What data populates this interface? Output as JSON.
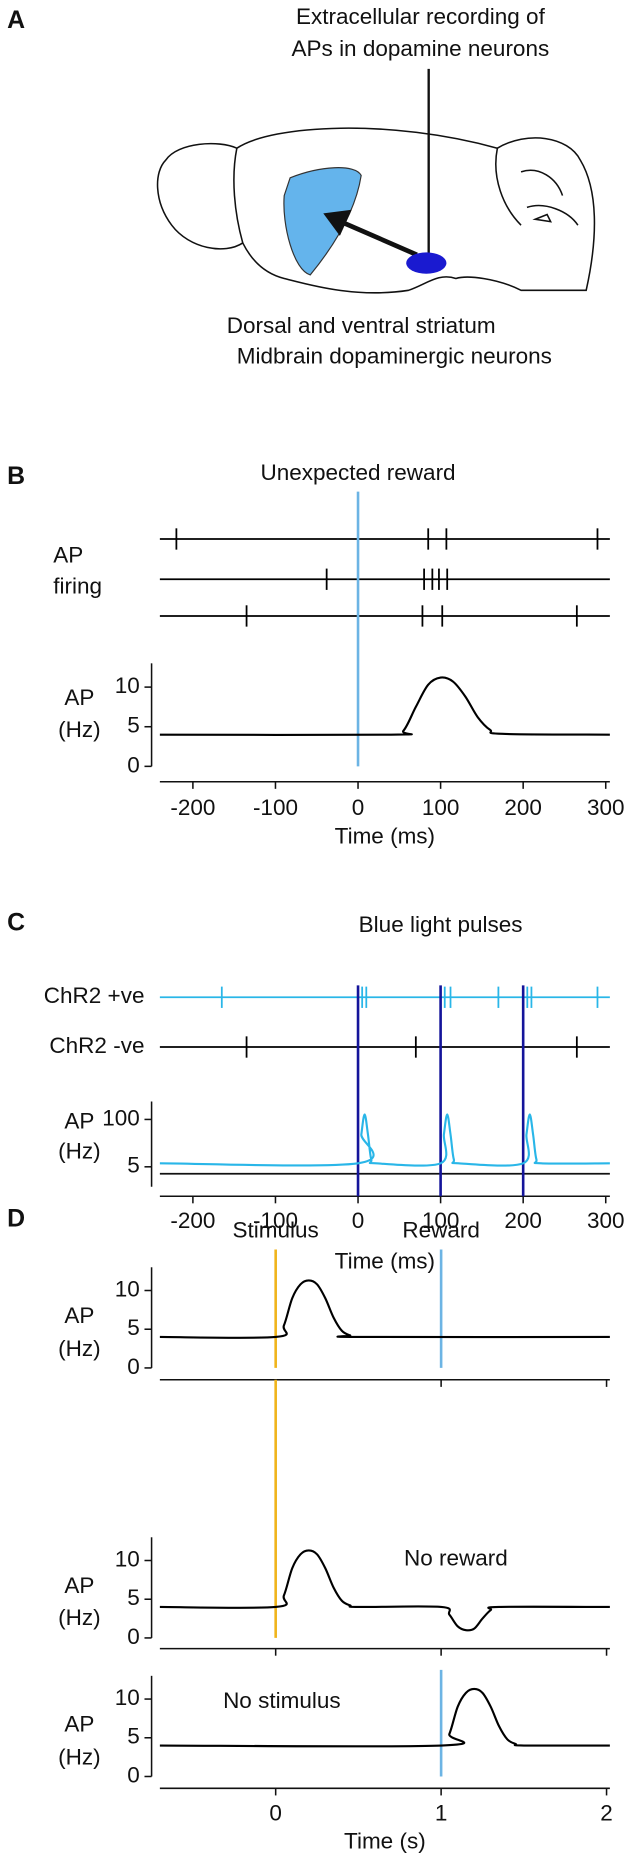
{
  "figure_a": {
    "label": "A",
    "recording_label": [
      "Extracellular recording of",
      "APs in dopamine neurons"
    ],
    "region_labels": [
      {
        "text": "Dorsal and ventral striatum",
        "color": "#64b4ec"
      },
      {
        "text": "Midbrain dopaminergic neurons",
        "color": "#1a1ad0"
      }
    ]
  },
  "chart_data": [
    {
      "type": "raster_rate",
      "panel_label": "B",
      "xlabel": "Time (ms)",
      "xlim": [
        -240,
        305
      ],
      "xticks": [
        -200,
        -100,
        0,
        100,
        200,
        300
      ],
      "events": [
        {
          "label": "Unexpected reward",
          "x": [
            0
          ],
          "color": "#6cb4e4"
        }
      ],
      "raster_label": [
        "AP",
        "firing"
      ],
      "raster": [
        {
          "color": "#000000",
          "spikes": [
            -220,
            85,
            107,
            290
          ]
        },
        {
          "color": "#000000",
          "spikes": [
            -38,
            80,
            90,
            98,
            108
          ]
        },
        {
          "color": "#000000",
          "spikes": [
            -135,
            78,
            102,
            265
          ]
        }
      ],
      "ylabel": [
        "AP",
        "(Hz)"
      ],
      "ylim": [
        0,
        13
      ],
      "yticks": [
        0,
        5,
        10
      ],
      "series": [
        {
          "color": "#000000",
          "x": [
            -240,
            40,
            55,
            70,
            85,
            100,
            115,
            130,
            145,
            160,
            175,
            305
          ],
          "values": [
            4,
            4,
            4.5,
            7.5,
            10.3,
            11.2,
            10.7,
            8.8,
            6.2,
            4.6,
            4.1,
            4
          ]
        }
      ]
    },
    {
      "type": "raster_rate",
      "panel_label": "C",
      "xlabel": "Time (ms)",
      "xlim": [
        -240,
        305
      ],
      "xticks": [
        -200,
        -100,
        0,
        100,
        200,
        300
      ],
      "events": [
        {
          "label": "Blue light pulses",
          "x": [
            0,
            100,
            200
          ],
          "color": "#14149a"
        }
      ],
      "raster": [
        {
          "label": "ChR2 +ve",
          "color": "#29b6e8",
          "spikes": [
            -165,
            5,
            10,
            105,
            112,
            170,
            205,
            210,
            290
          ]
        },
        {
          "label": "ChR2 -ve",
          "color": "#000000",
          "spikes": [
            -135,
            70,
            265
          ]
        }
      ],
      "ylabel": [
        "AP",
        "(Hz)"
      ],
      "ylim": [
        -35,
        136
      ],
      "yticks": [
        5,
        100
      ],
      "series": [
        {
          "color": "#29b6e8",
          "x": [
            -240,
            0,
            4,
            8,
            12,
            16,
            22,
            100,
            104,
            108,
            112,
            116,
            122,
            200,
            204,
            208,
            212,
            216,
            222,
            305
          ],
          "values": [
            12,
            12,
            70,
            110,
            70,
            20,
            12,
            12,
            70,
            110,
            70,
            20,
            12,
            12,
            70,
            110,
            70,
            20,
            12,
            12
          ]
        }
      ]
    },
    {
      "type": "stacked_line",
      "panel_label": "D",
      "xlabel": "Time (s)",
      "xlim": [
        -0.7,
        2.02
      ],
      "xticks": [
        0,
        1,
        2
      ],
      "ylabel": [
        "AP",
        "(Hz)"
      ],
      "subplots": [
        {
          "ylim": [
            0,
            13
          ],
          "yticks": [
            0,
            5,
            10
          ],
          "events": [
            {
              "label": "Stimulus",
              "x": 0,
              "color": "#f0b41c"
            },
            {
              "label": "Reward",
              "x": 1,
              "color": "#6cb4e4"
            }
          ],
          "series": [
            {
              "color": "#000000",
              "x": [
                -0.7,
                0,
                0.05,
                0.1,
                0.15,
                0.2,
                0.25,
                0.3,
                0.35,
                0.4,
                0.45,
                0.5,
                2.02
              ],
              "values": [
                4,
                4,
                5.5,
                9,
                10.8,
                11.3,
                10.8,
                9,
                6.5,
                4.8,
                4.2,
                4,
                4
              ]
            }
          ]
        },
        {
          "ylim": [
            0,
            13
          ],
          "yticks": [
            0,
            5,
            10
          ],
          "annotation": "No reward",
          "events": [
            {
              "x": 0,
              "color": "#f0b41c"
            }
          ],
          "series": [
            {
              "color": "#000000",
              "x": [
                -0.7,
                0,
                0.05,
                0.1,
                0.15,
                0.2,
                0.25,
                0.3,
                0.35,
                0.4,
                0.45,
                0.5,
                1.0,
                1.05,
                1.1,
                1.15,
                1.2,
                1.25,
                1.3,
                1.35,
                2.02
              ],
              "values": [
                4,
                4,
                5.5,
                9,
                10.8,
                11.3,
                10.8,
                9,
                6.5,
                4.8,
                4.2,
                4,
                4,
                3,
                1.5,
                1,
                1.2,
                2.5,
                3.6,
                4,
                4
              ]
            }
          ]
        },
        {
          "ylim": [
            0,
            13
          ],
          "yticks": [
            0,
            5,
            10
          ],
          "annotation": "No stimulus",
          "events": [
            {
              "x": 1,
              "color": "#6cb4e4"
            }
          ],
          "series": [
            {
              "color": "#000000",
              "x": [
                -0.7,
                1.0,
                1.05,
                1.1,
                1.15,
                1.2,
                1.25,
                1.3,
                1.35,
                1.4,
                1.45,
                1.5,
                2.02
              ],
              "values": [
                4,
                4,
                5.5,
                9,
                10.8,
                11.3,
                10.8,
                9,
                6.5,
                4.8,
                4.2,
                4,
                4
              ]
            }
          ]
        }
      ]
    }
  ]
}
